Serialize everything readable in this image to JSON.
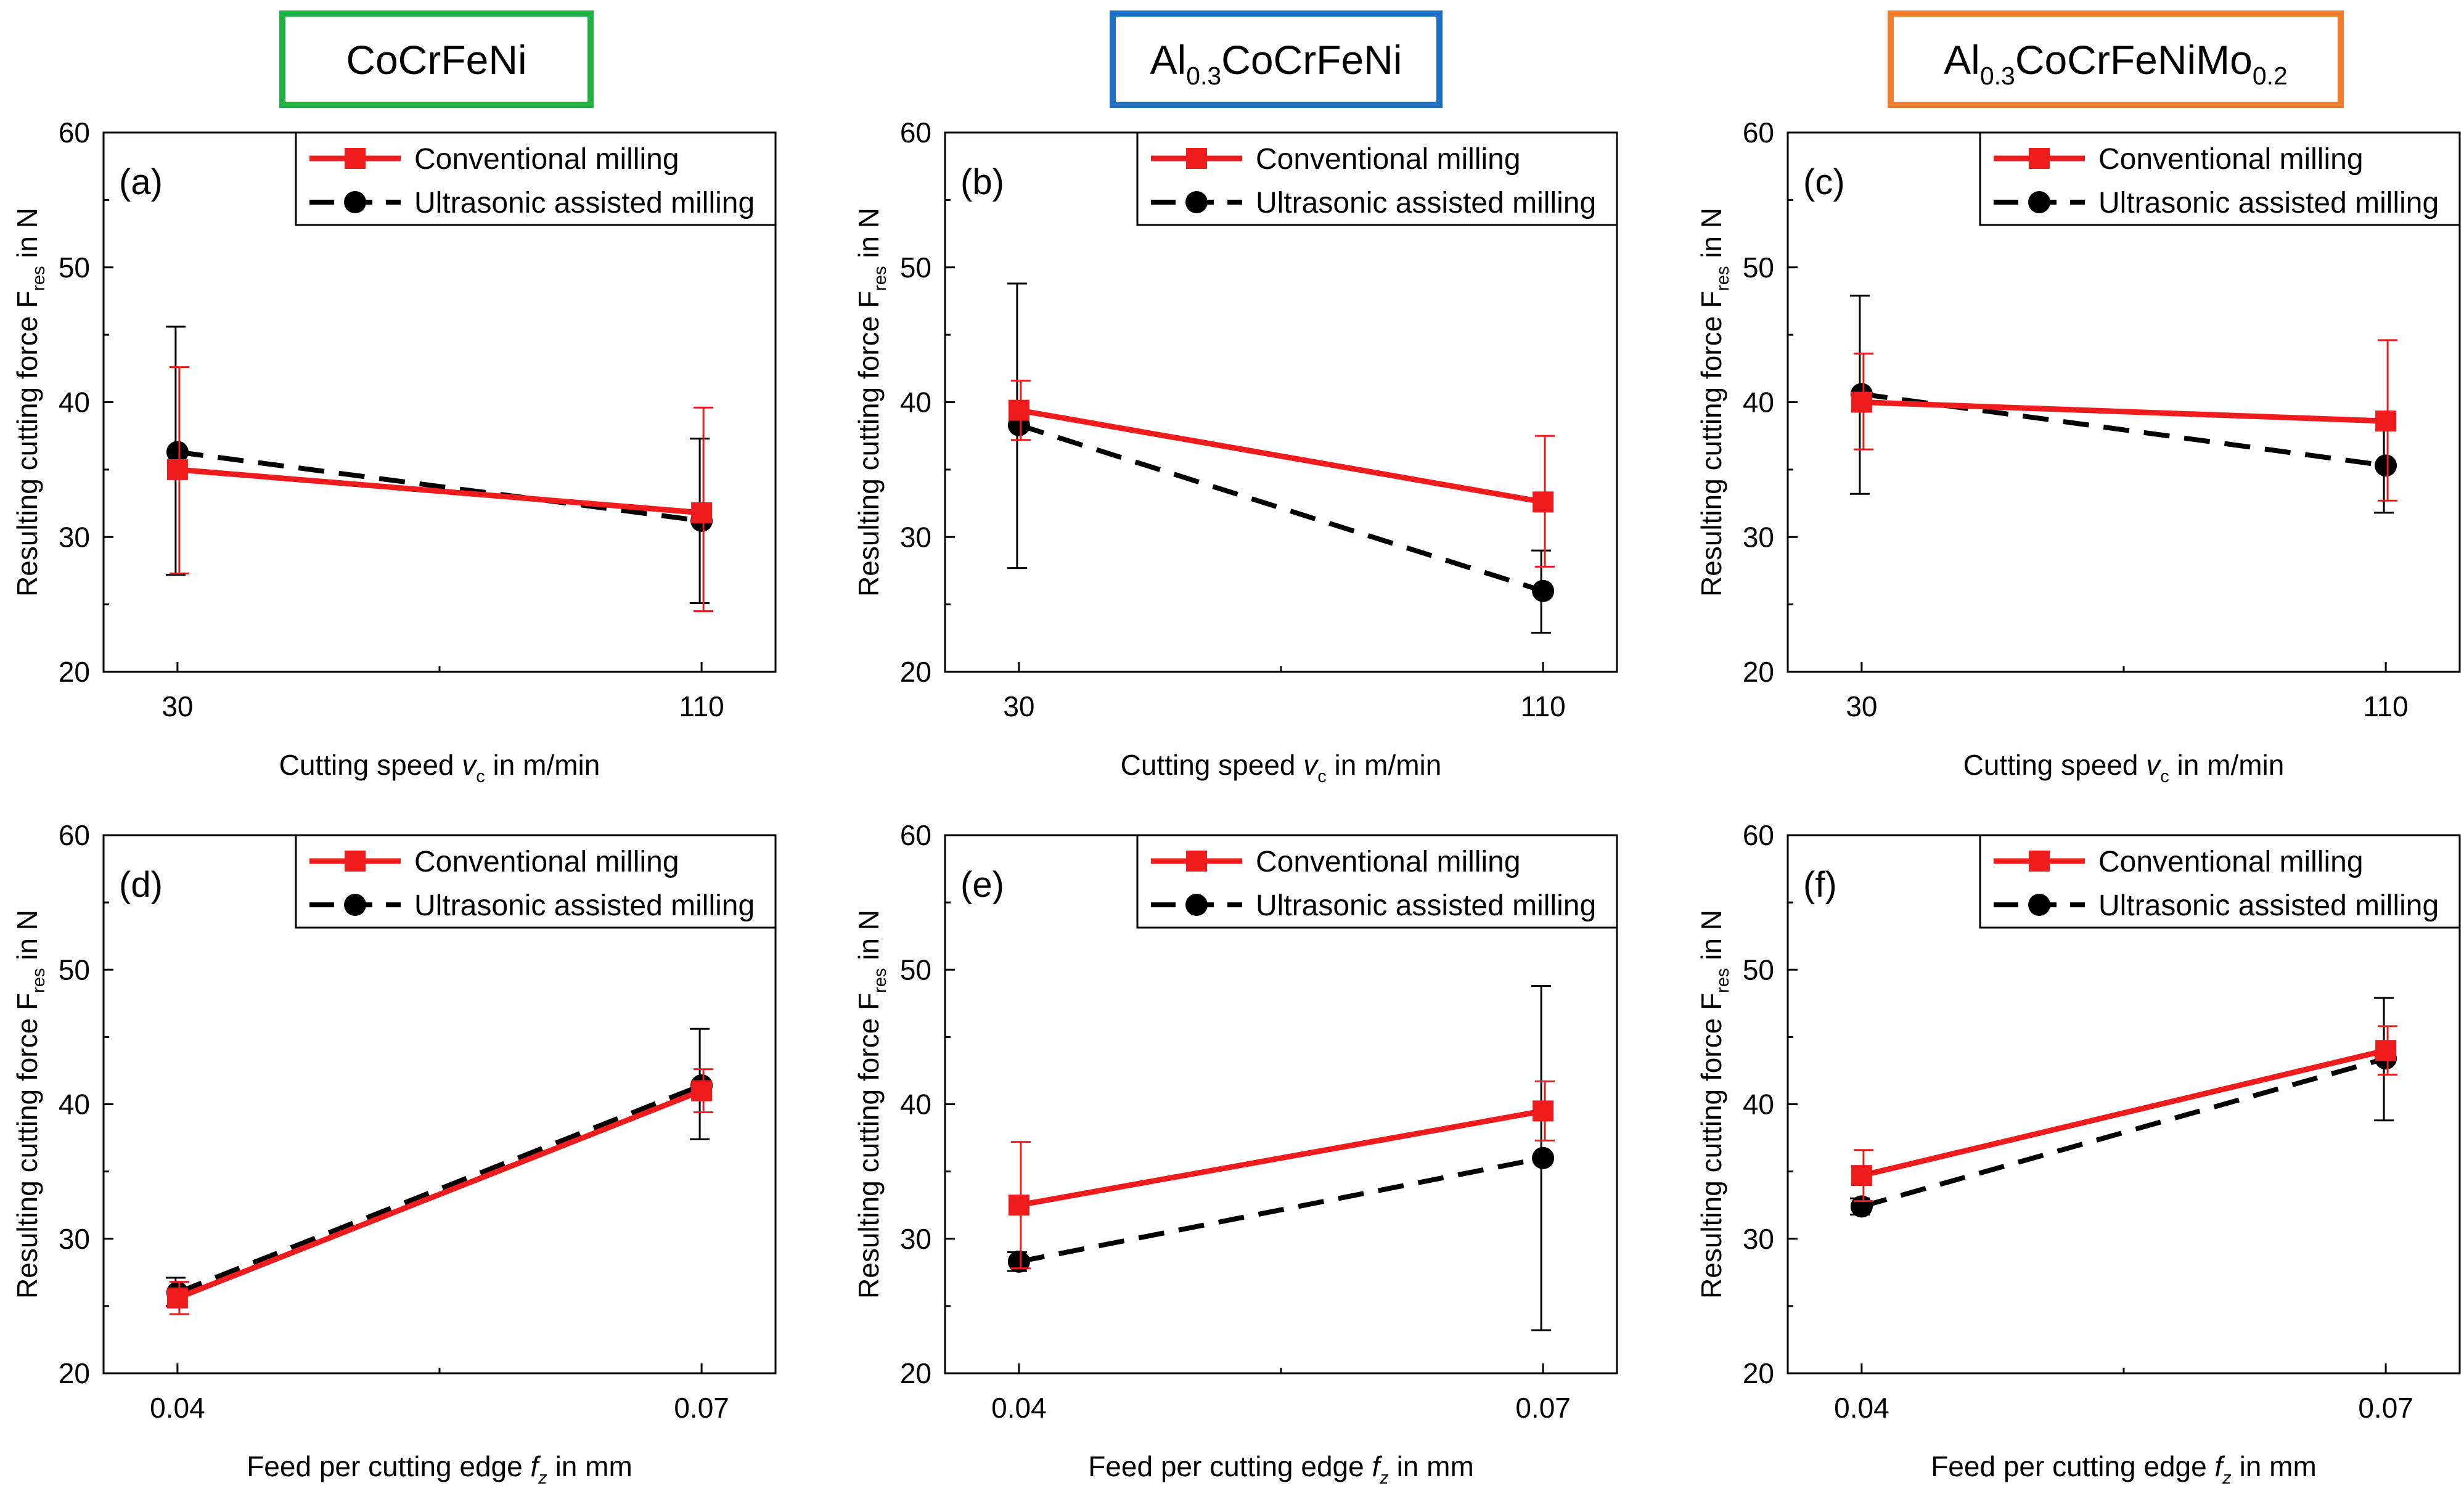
{
  "colors": {
    "conventional": "#ee1c1c",
    "ultrasonic": "#000000",
    "material_borders": [
      "#1fb141",
      "#1d6fc4",
      "#f07d2e"
    ]
  },
  "materials": [
    {
      "title_main": "CoCrFeNi",
      "parts": [
        {
          "t": "CoCrFeNi",
          "sub": false
        }
      ]
    },
    {
      "title_main": "Al0.3CoCrFeNi",
      "parts": [
        {
          "t": "Al",
          "sub": false
        },
        {
          "t": "0.3",
          "sub": true
        },
        {
          "t": "CoCrFeNi",
          "sub": false
        }
      ]
    },
    {
      "title_main": "Al0.3CoCrFeNiMo0.2",
      "parts": [
        {
          "t": "Al",
          "sub": false
        },
        {
          "t": "0.3",
          "sub": true
        },
        {
          "t": "CoCrFeNiMo",
          "sub": false
        },
        {
          "t": "0.2",
          "sub": true
        }
      ]
    }
  ],
  "legend": {
    "conventional": "Conventional milling",
    "ultrasonic": "Ultrasonic assisted milling"
  },
  "ylabel_parts": [
    {
      "t": "Resulting cutting force F",
      "sub": false
    },
    {
      "t": "res",
      "sub": true
    },
    {
      "t": " in N",
      "sub": false
    }
  ],
  "xlabels": {
    "speed": [
      {
        "t": "Cutting speed ",
        "it": false,
        "sub": false
      },
      {
        "t": "v",
        "it": true,
        "sub": false
      },
      {
        "t": "c",
        "it": false,
        "sub": true
      },
      {
        "t": " in m/min",
        "it": false,
        "sub": false
      }
    ],
    "feed": [
      {
        "t": "Feed per cutting edge ",
        "it": false,
        "sub": false
      },
      {
        "t": "f",
        "it": true,
        "sub": false
      },
      {
        "t": "z",
        "it": true,
        "sub": true
      },
      {
        "t": " in mm",
        "it": false,
        "sub": false
      }
    ]
  },
  "chart_data": [
    {
      "type": "line",
      "panel_label": "(a)",
      "material": "CoCrFeNi",
      "xlabel_key": "speed",
      "categories": [
        "30",
        "110"
      ],
      "ylim": [
        20,
        60
      ],
      "yticks": [
        20,
        30,
        40,
        50,
        60
      ],
      "series": [
        {
          "name": "Conventional milling",
          "values": [
            35.0,
            31.8
          ],
          "err_low": [
            27.3,
            24.5
          ],
          "err_high": [
            42.6,
            39.6
          ]
        },
        {
          "name": "Ultrasonic assisted milling",
          "values": [
            36.3,
            31.2
          ],
          "err_low": [
            27.2,
            25.1
          ],
          "err_high": [
            45.6,
            37.3
          ]
        }
      ]
    },
    {
      "type": "line",
      "panel_label": "(b)",
      "material": "Al0.3CoCrFeNi",
      "xlabel_key": "speed",
      "categories": [
        "30",
        "110"
      ],
      "ylim": [
        20,
        60
      ],
      "yticks": [
        20,
        30,
        40,
        50,
        60
      ],
      "series": [
        {
          "name": "Conventional milling",
          "values": [
            39.4,
            32.6
          ],
          "err_low": [
            37.2,
            27.8
          ],
          "err_high": [
            41.6,
            37.5
          ]
        },
        {
          "name": "Ultrasonic assisted milling",
          "values": [
            38.3,
            26.0
          ],
          "err_low": [
            27.7,
            22.9
          ],
          "err_high": [
            48.8,
            29.0
          ]
        }
      ]
    },
    {
      "type": "line",
      "panel_label": "(c)",
      "material": "Al0.3CoCrFeNiMo0.2",
      "xlabel_key": "speed",
      "categories": [
        "30",
        "110"
      ],
      "ylim": [
        20,
        60
      ],
      "yticks": [
        20,
        30,
        40,
        50,
        60
      ],
      "series": [
        {
          "name": "Conventional milling",
          "values": [
            40.0,
            38.6
          ],
          "err_low": [
            36.5,
            32.7
          ],
          "err_high": [
            43.6,
            44.6
          ]
        },
        {
          "name": "Ultrasonic assisted milling",
          "values": [
            40.6,
            35.3
          ],
          "err_low": [
            33.2,
            31.8
          ],
          "err_high": [
            47.9,
            38.7
          ]
        }
      ]
    },
    {
      "type": "line",
      "panel_label": "(d)",
      "material": "CoCrFeNi",
      "xlabel_key": "feed",
      "categories": [
        "0.04",
        "0.07"
      ],
      "ylim": [
        20,
        60
      ],
      "yticks": [
        20,
        30,
        40,
        50,
        60
      ],
      "series": [
        {
          "name": "Conventional milling",
          "values": [
            25.6,
            41.0
          ],
          "err_low": [
            24.4,
            39.4
          ],
          "err_high": [
            26.8,
            42.6
          ]
        },
        {
          "name": "Ultrasonic assisted milling",
          "values": [
            26.0,
            41.4
          ],
          "err_low": [
            25.0,
            37.4
          ],
          "err_high": [
            27.1,
            45.6
          ]
        }
      ]
    },
    {
      "type": "line",
      "panel_label": "(e)",
      "material": "Al0.3CoCrFeNi",
      "xlabel_key": "feed",
      "categories": [
        "0.04",
        "0.07"
      ],
      "ylim": [
        20,
        60
      ],
      "yticks": [
        20,
        30,
        40,
        50,
        60
      ],
      "series": [
        {
          "name": "Conventional milling",
          "values": [
            32.5,
            39.5
          ],
          "err_low": [
            27.8,
            37.3
          ],
          "err_high": [
            37.2,
            41.7
          ]
        },
        {
          "name": "Ultrasonic assisted milling",
          "values": [
            28.3,
            36.0
          ],
          "err_low": [
            27.6,
            23.2
          ],
          "err_high": [
            29.0,
            48.8
          ]
        }
      ]
    },
    {
      "type": "line",
      "panel_label": "(f)",
      "material": "Al0.3CoCrFeNiMo0.2",
      "xlabel_key": "feed",
      "categories": [
        "0.04",
        "0.07"
      ],
      "ylim": [
        20,
        60
      ],
      "yticks": [
        20,
        30,
        40,
        50,
        60
      ],
      "series": [
        {
          "name": "Conventional milling",
          "values": [
            34.7,
            44.0
          ],
          "err_low": [
            32.8,
            42.2
          ],
          "err_high": [
            36.6,
            45.8
          ]
        },
        {
          "name": "Ultrasonic assisted milling",
          "values": [
            32.4,
            43.4
          ],
          "err_low": [
            31.8,
            38.8
          ],
          "err_high": [
            33.0,
            47.9
          ]
        }
      ]
    }
  ]
}
